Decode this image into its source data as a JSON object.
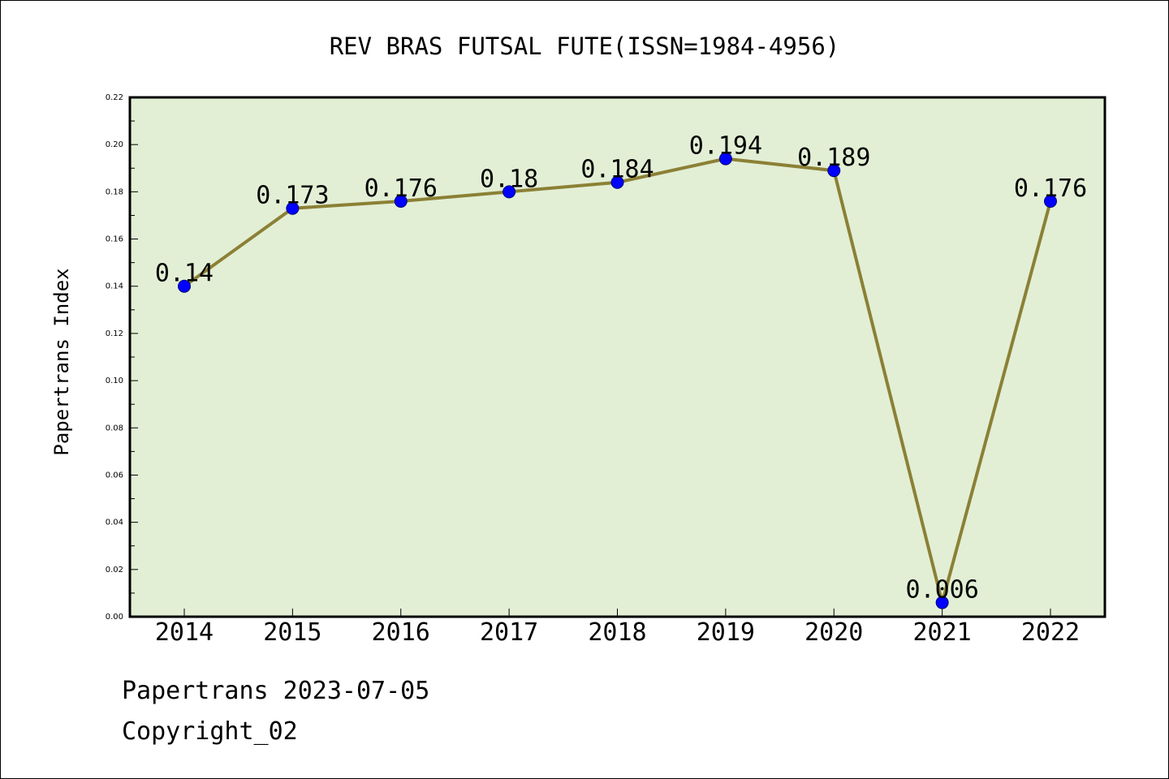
{
  "chart_data": {
    "type": "line",
    "title": "REV BRAS FUTSAL FUTE(ISSN=1984-4956)",
    "xlabel": "",
    "ylabel": "Papertrans Index",
    "categories": [
      "2014",
      "2015",
      "2016",
      "2017",
      "2018",
      "2019",
      "2020",
      "2021",
      "2022"
    ],
    "series": [
      {
        "values": [
          0.14,
          0.173,
          0.176,
          0.18,
          0.184,
          0.194,
          0.189,
          0.006,
          0.176
        ]
      }
    ],
    "data_labels": [
      "0.14",
      "0.173",
      "0.176",
      "0.18",
      "0.184",
      "0.194",
      "0.189",
      "0.006",
      "0.176"
    ],
    "ylim": [
      0,
      0.22
    ],
    "yticks": [
      "0.00",
      "0.02",
      "0.04",
      "0.06",
      "0.08",
      "0.10",
      "0.12",
      "0.14",
      "0.16",
      "0.18",
      "0.20",
      "0.22"
    ],
    "grid": false,
    "legend": "none",
    "colors": {
      "line": "#8b8035",
      "marker": "#0000ff",
      "plot_background": "#e2efd5"
    }
  },
  "footer": {
    "date_line": "Papertrans 2023-07-05",
    "copyright": "Copyright_02"
  }
}
